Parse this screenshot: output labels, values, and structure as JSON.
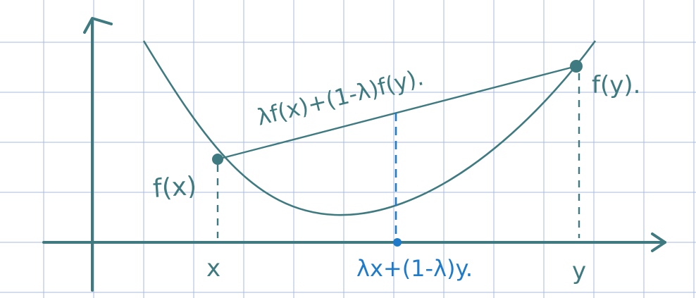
{
  "labels": {
    "fx": "f(x)",
    "fy": "f(y).",
    "x": "x",
    "y": "y",
    "chord": "λf(x)+(1-λ)f(y).",
    "mid": "λx+(1-λ)y."
  },
  "colors": {
    "grid": "#a9b8e0",
    "ink": "#3e7a80",
    "highlight": "#1f7bc9"
  }
}
